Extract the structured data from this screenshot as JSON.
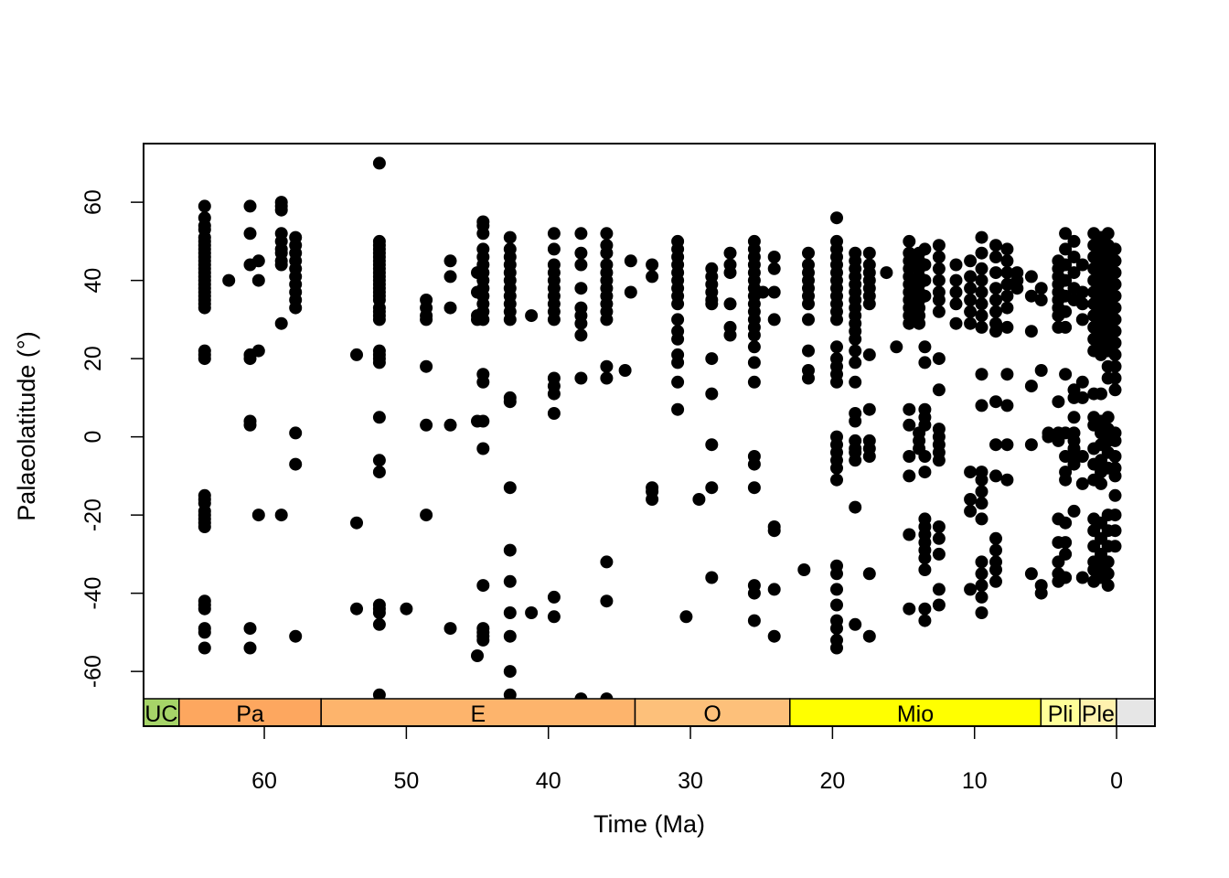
{
  "chart_data": {
    "type": "scatter",
    "title": "",
    "xlabel": "Time (Ma)",
    "ylabel": "Palaeolatitude (°)",
    "xlim": [
      68.5,
      -2.7
    ],
    "ylim": [
      -74,
      75
    ],
    "x_reversed": true,
    "x_ticks": [
      60,
      50,
      40,
      30,
      20,
      10,
      0
    ],
    "x_tick_labels": [
      "60",
      "50",
      "40",
      "30",
      "20",
      "10",
      "0"
    ],
    "y_ticks": [
      60,
      40,
      20,
      0,
      -20,
      -40,
      -60
    ],
    "y_tick_labels": [
      "60",
      "40",
      "20",
      "0",
      "-20",
      "-40",
      "-60"
    ],
    "grid": false,
    "legend": "none",
    "marker_color": "#000000",
    "time_scale": [
      {
        "label": "UC",
        "start": 68.5,
        "end": 66.0,
        "color": "#A6D468"
      },
      {
        "label": "Pa",
        "start": 66.0,
        "end": 56.0,
        "color": "#FDA75F"
      },
      {
        "label": "E",
        "start": 56.0,
        "end": 33.9,
        "color": "#FDB46C"
      },
      {
        "label": "O",
        "start": 33.9,
        "end": 23.0,
        "color": "#FDC07A"
      },
      {
        "label": "Mio",
        "start": 23.0,
        "end": 5.33,
        "color": "#FFFF00"
      },
      {
        "label": "Pli",
        "start": 5.33,
        "end": 2.58,
        "color": "#FFFF99"
      },
      {
        "label": "Ple",
        "start": 2.58,
        "end": 0.0117,
        "color": "#FFF2AE"
      },
      {
        "label": "",
        "start": 0.0117,
        "end": -2.7,
        "color": "#E6E6E6"
      }
    ],
    "columns": [
      {
        "x": 64.2,
        "y": [
          59,
          56,
          54,
          53,
          51,
          50,
          49,
          48,
          47,
          46,
          45,
          44,
          43,
          42,
          41,
          40,
          39,
          38,
          37,
          36,
          35,
          34,
          33,
          22,
          21,
          20,
          -15,
          -16,
          -17,
          -19,
          -20,
          -21,
          -22,
          -23,
          -42,
          -43,
          -44,
          -49,
          -50,
          -54
        ]
      },
      {
        "x": 61.0,
        "y": [
          59,
          52,
          44,
          21,
          20,
          4,
          3,
          -49,
          -54
        ]
      },
      {
        "x": 60.4,
        "y": [
          45,
          40,
          22,
          -20
        ]
      },
      {
        "x": 62.5,
        "y": [
          40
        ]
      },
      {
        "x": 58.8,
        "y": [
          60,
          59,
          58,
          52,
          50,
          48,
          47,
          45,
          44,
          29,
          -20
        ]
      },
      {
        "x": 57.8,
        "y": [
          51,
          49,
          47,
          45,
          43,
          41,
          39,
          37,
          35,
          33,
          1,
          -7,
          -51
        ]
      },
      {
        "x": 53.5,
        "y": [
          21,
          -22,
          -44
        ]
      },
      {
        "x": 51.9,
        "y": [
          70,
          50,
          49,
          48,
          47,
          46,
          45,
          44,
          43,
          42,
          41,
          40,
          39,
          38,
          37,
          36,
          35,
          33,
          32,
          31,
          30,
          22,
          21,
          20,
          19,
          5,
          -6,
          -9,
          -43,
          -44,
          -45,
          -48,
          -66
        ]
      },
      {
        "x": 50.0,
        "y": [
          -44
        ]
      },
      {
        "x": 48.6,
        "y": [
          35,
          33,
          31,
          30,
          18,
          3,
          -20
        ]
      },
      {
        "x": 46.9,
        "y": [
          45,
          41,
          33,
          3,
          -49
        ]
      },
      {
        "x": 45.0,
        "y": [
          42,
          37,
          31,
          30,
          4,
          -56
        ]
      },
      {
        "x": 44.6,
        "y": [
          55,
          54,
          52,
          48,
          46,
          44,
          42,
          40,
          38,
          36,
          34,
          32,
          30,
          16,
          14,
          4,
          -3,
          -38,
          -49,
          -50,
          -51,
          -52
        ]
      },
      {
        "x": 42.7,
        "y": [
          51,
          48,
          46,
          44,
          42,
          40,
          38,
          36,
          34,
          32,
          30,
          10,
          9,
          -13,
          -29,
          -37,
          -45,
          -51,
          -60,
          -66
        ]
      },
      {
        "x": 41.2,
        "y": [
          31,
          -45
        ]
      },
      {
        "x": 39.6,
        "y": [
          52,
          48,
          44,
          42,
          40,
          38,
          36,
          34,
          32,
          30,
          15,
          13,
          11,
          6,
          -41,
          -46
        ]
      },
      {
        "x": 37.7,
        "y": [
          52,
          47,
          44,
          38,
          33,
          31,
          29,
          26,
          15,
          -67
        ]
      },
      {
        "x": 35.9,
        "y": [
          52,
          49,
          47,
          44,
          42,
          40,
          38,
          36,
          34,
          32,
          30,
          18,
          15,
          -32,
          -42,
          -67
        ]
      },
      {
        "x": 34.6,
        "y": [
          17
        ]
      },
      {
        "x": 34.2,
        "y": [
          45,
          37
        ]
      },
      {
        "x": 32.7,
        "y": [
          44,
          41,
          -13,
          -14,
          -16
        ]
      },
      {
        "x": 30.9,
        "y": [
          50,
          48,
          46,
          44,
          42,
          40,
          38,
          36,
          34,
          30,
          27,
          25,
          21,
          19,
          14,
          7
        ]
      },
      {
        "x": 30.3,
        "y": [
          -46
        ]
      },
      {
        "x": 29.4,
        "y": [
          -16
        ]
      },
      {
        "x": 28.5,
        "y": [
          43,
          41,
          39,
          37,
          35,
          34,
          20,
          11,
          -2,
          -13,
          -36
        ]
      },
      {
        "x": 27.2,
        "y": [
          47,
          44,
          42,
          34,
          28,
          26
        ]
      },
      {
        "x": 25.5,
        "y": [
          50,
          48,
          46,
          44,
          42,
          40,
          38,
          36,
          34,
          32,
          30,
          28,
          26,
          23,
          19,
          14,
          -5,
          -7,
          -13,
          -38,
          -40,
          -47
        ]
      },
      {
        "x": 24.9,
        "y": [
          37
        ]
      },
      {
        "x": 24.1,
        "y": [
          46,
          43,
          37,
          30,
          -23,
          -24,
          -39,
          -51
        ]
      },
      {
        "x": 22.0,
        "y": [
          -34
        ]
      },
      {
        "x": 21.7,
        "y": [
          47,
          44,
          42,
          40,
          38,
          36,
          34,
          30,
          22,
          17,
          15
        ]
      },
      {
        "x": 19.7,
        "y": [
          56,
          50,
          48,
          46,
          44,
          42,
          40,
          38,
          36,
          34,
          32,
          30,
          23,
          20,
          18,
          16,
          14,
          0,
          -2,
          -4,
          -6,
          -8,
          -11,
          -33,
          -35,
          -39,
          -43,
          -47,
          -49,
          -52,
          -54
        ]
      },
      {
        "x": 18.4,
        "y": [
          47,
          45,
          43,
          41,
          39,
          37,
          35,
          33,
          31,
          29,
          27,
          25,
          22,
          19,
          14,
          6,
          4,
          -1,
          -3,
          -4,
          -6,
          -18,
          -48
        ]
      },
      {
        "x": 17.4,
        "y": [
          47,
          44,
          42,
          40,
          38,
          36,
          34,
          21,
          7,
          -1,
          -3,
          -5,
          -35,
          -51
        ]
      },
      {
        "x": 16.2,
        "y": [
          42
        ]
      },
      {
        "x": 15.5,
        "y": [
          23
        ]
      },
      {
        "x": 14.6,
        "y": [
          50,
          47,
          45,
          43,
          41,
          39,
          37,
          35,
          33,
          31,
          29,
          7,
          3,
          -5,
          -10,
          -25,
          -44
        ]
      },
      {
        "x": 13.9,
        "y": [
          47,
          45,
          43,
          41,
          39,
          37,
          35,
          33,
          31,
          29,
          1,
          -1,
          -3
        ]
      },
      {
        "x": 13.5,
        "y": [
          48,
          44,
          40,
          36,
          23,
          19,
          7,
          5,
          3,
          -5,
          -9,
          -21,
          -23,
          -25,
          -27,
          -29,
          -31,
          -34,
          -44,
          -47
        ]
      },
      {
        "x": 12.5,
        "y": [
          49,
          46,
          43,
          40,
          37,
          35,
          32,
          20,
          12,
          2,
          0,
          -2,
          -4,
          -6,
          -23,
          -26,
          -30,
          -39,
          -43
        ]
      },
      {
        "x": 11.3,
        "y": [
          44,
          40,
          37,
          34,
          29
        ]
      },
      {
        "x": 10.3,
        "y": [
          45,
          41,
          38,
          35,
          32,
          29,
          -9,
          -16,
          -19,
          -39
        ]
      },
      {
        "x": 9.5,
        "y": [
          51,
          47,
          43,
          40,
          37,
          34,
          31,
          28,
          16,
          8,
          -9,
          -11,
          -14,
          -17,
          -21,
          -32,
          -35,
          -38,
          -41,
          -45
        ]
      },
      {
        "x": 8.5,
        "y": [
          49,
          46,
          42,
          38,
          35,
          32,
          29,
          27,
          9,
          -2,
          -10,
          -26,
          -29,
          -32,
          -34,
          -37
        ]
      },
      {
        "x": 7.7,
        "y": [
          48,
          45,
          42,
          39,
          36,
          33,
          28,
          16,
          8,
          -2,
          -11
        ]
      },
      {
        "x": 7.0,
        "y": [
          42,
          40,
          38
        ]
      },
      {
        "x": 6.0,
        "y": [
          41,
          36,
          27,
          13,
          -2,
          -35
        ]
      },
      {
        "x": 5.3,
        "y": [
          38,
          35,
          17,
          -38,
          -40
        ]
      },
      {
        "x": 4.8,
        "y": [
          1,
          0
        ]
      },
      {
        "x": 4.1,
        "y": [
          45,
          43,
          41,
          39,
          37,
          35,
          33,
          31,
          28,
          9,
          1,
          0,
          -1,
          -21,
          -27,
          -32,
          -35,
          -37
        ]
      },
      {
        "x": 3.6,
        "y": [
          52,
          48,
          44,
          40,
          36,
          32,
          28,
          16,
          1,
          -5,
          -9,
          -11,
          -22,
          -27,
          -30,
          -36
        ]
      },
      {
        "x": 3.0,
        "y": [
          50,
          46,
          42,
          38,
          35,
          12,
          10,
          5,
          1,
          -1,
          -3,
          -5,
          -7,
          -19
        ]
      },
      {
        "x": 2.4,
        "y": [
          44,
          37,
          34,
          30,
          14,
          10,
          -5,
          -12,
          -36
        ]
      },
      {
        "x": 1.6,
        "y": [
          52,
          49,
          46,
          43,
          40,
          37,
          34,
          31,
          28,
          25,
          22,
          11,
          5,
          3,
          -3,
          -7,
          -11,
          -21,
          -24,
          -28,
          -32,
          -34,
          -37
        ]
      },
      {
        "x": 1.1,
        "y": [
          51,
          48,
          45,
          42,
          39,
          36,
          33,
          30,
          27,
          24,
          21,
          11,
          4,
          1,
          -2,
          -6,
          -9,
          -12,
          -22,
          -26,
          -30,
          -33,
          -36
        ]
      },
      {
        "x": 0.6,
        "y": [
          52,
          49,
          46,
          43,
          40,
          37,
          34,
          31,
          28,
          25,
          22,
          18,
          15,
          5,
          2,
          -1,
          -4,
          -8,
          -20,
          -24,
          -28,
          -32,
          -35,
          -38
        ]
      },
      {
        "x": 0.1,
        "y": [
          48,
          45,
          42,
          39,
          36,
          33,
          30,
          27,
          24,
          21,
          18,
          15,
          12,
          1,
          -1,
          -5,
          -8,
          -10,
          -15,
          -20,
          -24,
          -28
        ]
      }
    ]
  }
}
